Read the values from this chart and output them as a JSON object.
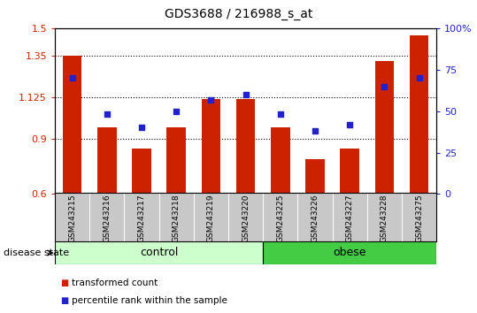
{
  "title": "GDS3688 / 216988_s_at",
  "samples": [
    "GSM243215",
    "GSM243216",
    "GSM243217",
    "GSM243218",
    "GSM243219",
    "GSM243220",
    "GSM243225",
    "GSM243226",
    "GSM243227",
    "GSM243228",
    "GSM243275"
  ],
  "bar_values": [
    1.35,
    0.96,
    0.845,
    0.96,
    1.115,
    1.115,
    0.96,
    0.79,
    0.845,
    1.32,
    1.46
  ],
  "scatter_values": [
    70,
    48,
    40,
    50,
    57,
    60,
    48,
    38,
    42,
    65,
    70
  ],
  "ylim_left": [
    0.6,
    1.5
  ],
  "ylim_right": [
    0,
    100
  ],
  "yticks_left": [
    0.6,
    0.9,
    1.125,
    1.35,
    1.5
  ],
  "ytick_labels_left": [
    "0.6",
    "0.9",
    "1.125",
    "1.35",
    "1.5"
  ],
  "yticks_right": [
    0,
    25,
    50,
    75,
    100
  ],
  "ytick_labels_right": [
    "0",
    "25",
    "50",
    "75",
    "100%"
  ],
  "grid_values": [
    0.9,
    1.125,
    1.35
  ],
  "bar_color": "#cc2200",
  "scatter_color": "#2222cc",
  "control_label": "control",
  "obese_label": "obese",
  "disease_state_label": "disease state",
  "legend_bar_label": "transformed count",
  "legend_scatter_label": "percentile rank within the sample",
  "bar_width": 0.55,
  "plot_bg_color": "#ffffff",
  "tick_area_bg": "#c8c8c8",
  "control_bg": "#ccffcc",
  "obese_bg": "#44cc44",
  "n_control": 6,
  "n_obese": 5
}
